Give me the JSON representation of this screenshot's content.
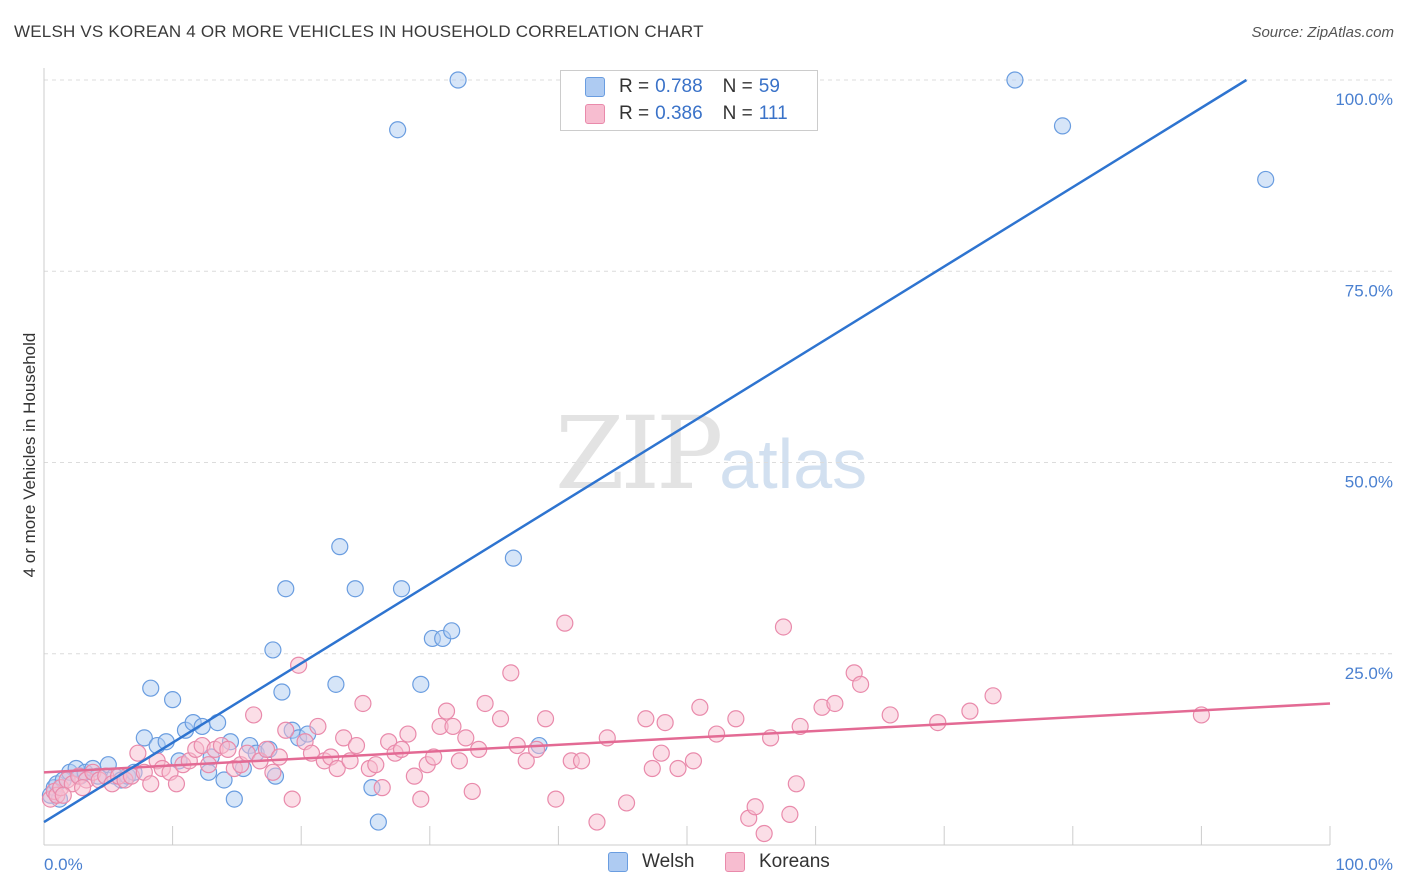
{
  "title": "WELSH VS KOREAN 4 OR MORE VEHICLES IN HOUSEHOLD CORRELATION CHART",
  "source": "Source: ZipAtlas.com",
  "watermark": {
    "zip": "ZIP",
    "atlas": "atlas"
  },
  "legend": {
    "welsh": {
      "r_label": "R =",
      "r_value": "0.788",
      "n_label": "N =",
      "n_value": "59"
    },
    "koreans": {
      "r_label": "R =",
      "r_value": "0.386",
      "n_label": "N =",
      "n_value": "111"
    }
  },
  "bottom_legend": {
    "welsh": "Welsh",
    "koreans": "Koreans"
  },
  "colors": {
    "welsh_fill": "#aecbf2",
    "welsh_stroke": "#6a9de0",
    "welsh_line": "#2e74d0",
    "koreans_fill": "#f7bdd0",
    "koreans_stroke": "#e98aab",
    "koreans_line": "#e36a94"
  },
  "chart_data": {
    "type": "scatter",
    "title": "WELSH VS KOREAN 4 OR MORE VEHICLES IN HOUSEHOLD CORRELATION CHART",
    "xlabel": "",
    "ylabel": "4 or more Vehicles in Household",
    "xlim": [
      0,
      100
    ],
    "ylim": [
      0,
      100
    ],
    "x_tick_labels": [
      "0.0%",
      "100.0%"
    ],
    "y_tick_labels": [
      "25.0%",
      "50.0%",
      "75.0%",
      "100.0%"
    ],
    "y_ticks": [
      25,
      50,
      75,
      100
    ],
    "series": [
      {
        "name": "Welsh",
        "r": 0.788,
        "n": 59,
        "trend": {
          "x": [
            0,
            93.5
          ],
          "y": [
            3.0,
            100.0
          ]
        },
        "points": [
          [
            0.5,
            6.5
          ],
          [
            0.8,
            7.5
          ],
          [
            1.0,
            8.0
          ],
          [
            1.2,
            6.0
          ],
          [
            1.5,
            8.5
          ],
          [
            2.0,
            9.5
          ],
          [
            2.5,
            10.0
          ],
          [
            2.8,
            9.0
          ],
          [
            3.2,
            9.5
          ],
          [
            3.8,
            10.0
          ],
          [
            4.2,
            9.0
          ],
          [
            5.0,
            10.5
          ],
          [
            5.5,
            9.0
          ],
          [
            6.0,
            8.5
          ],
          [
            6.5,
            9.0
          ],
          [
            7.0,
            9.5
          ],
          [
            7.8,
            14.0
          ],
          [
            8.3,
            20.5
          ],
          [
            8.8,
            13.0
          ],
          [
            9.5,
            13.5
          ],
          [
            10.0,
            19.0
          ],
          [
            10.5,
            11.0
          ],
          [
            11.0,
            15.0
          ],
          [
            11.6,
            16.0
          ],
          [
            12.3,
            15.5
          ],
          [
            12.8,
            9.5
          ],
          [
            13.0,
            11.5
          ],
          [
            13.5,
            16.0
          ],
          [
            14.0,
            8.5
          ],
          [
            14.5,
            13.5
          ],
          [
            14.8,
            6.0
          ],
          [
            15.5,
            10.0
          ],
          [
            16.0,
            13.0
          ],
          [
            16.5,
            12.0
          ],
          [
            17.5,
            12.5
          ],
          [
            17.8,
            25.5
          ],
          [
            18.0,
            9.0
          ],
          [
            18.5,
            20.0
          ],
          [
            18.8,
            33.5
          ],
          [
            19.3,
            15.0
          ],
          [
            19.8,
            14.0
          ],
          [
            20.5,
            14.5
          ],
          [
            22.7,
            21.0
          ],
          [
            23.0,
            39.0
          ],
          [
            24.2,
            33.5
          ],
          [
            25.5,
            7.5
          ],
          [
            26.0,
            3.0
          ],
          [
            27.5,
            93.5
          ],
          [
            27.8,
            33.5
          ],
          [
            29.3,
            21.0
          ],
          [
            30.2,
            27.0
          ],
          [
            31.0,
            27.0
          ],
          [
            31.7,
            28.0
          ],
          [
            32.2,
            100.0
          ],
          [
            36.5,
            37.5
          ],
          [
            38.5,
            13.0
          ],
          [
            75.5,
            100.0
          ],
          [
            79.2,
            94.0
          ],
          [
            95.0,
            87.0
          ]
        ]
      },
      {
        "name": "Koreans",
        "r": 0.386,
        "n": 111,
        "trend": {
          "x": [
            0,
            100
          ],
          "y": [
            9.5,
            18.5
          ]
        },
        "points": [
          [
            0.5,
            6.0
          ],
          [
            0.8,
            7.0
          ],
          [
            1.0,
            6.5
          ],
          [
            1.3,
            7.5
          ],
          [
            1.8,
            8.5
          ],
          [
            2.2,
            8.0
          ],
          [
            2.7,
            9.0
          ],
          [
            3.3,
            8.5
          ],
          [
            3.8,
            9.5
          ],
          [
            4.3,
            8.5
          ],
          [
            4.8,
            9.0
          ],
          [
            5.3,
            8.0
          ],
          [
            5.8,
            9.0
          ],
          [
            6.3,
            8.5
          ],
          [
            6.8,
            9.0
          ],
          [
            7.3,
            12.0
          ],
          [
            7.8,
            9.5
          ],
          [
            8.3,
            8.0
          ],
          [
            8.8,
            11.0
          ],
          [
            9.2,
            10.0
          ],
          [
            9.8,
            9.5
          ],
          [
            10.3,
            8.0
          ],
          [
            10.8,
            10.5
          ],
          [
            11.3,
            11.0
          ],
          [
            11.8,
            12.5
          ],
          [
            12.3,
            13.0
          ],
          [
            12.8,
            10.5
          ],
          [
            13.3,
            12.5
          ],
          [
            13.8,
            13.0
          ],
          [
            14.3,
            12.5
          ],
          [
            14.8,
            10.0
          ],
          [
            15.3,
            10.5
          ],
          [
            15.8,
            12.0
          ],
          [
            16.3,
            17.0
          ],
          [
            16.8,
            11.0
          ],
          [
            17.3,
            12.5
          ],
          [
            17.8,
            9.5
          ],
          [
            18.3,
            11.5
          ],
          [
            18.8,
            15.0
          ],
          [
            19.3,
            6.0
          ],
          [
            19.8,
            23.5
          ],
          [
            20.3,
            13.5
          ],
          [
            20.8,
            12.0
          ],
          [
            21.3,
            15.5
          ],
          [
            21.8,
            11.0
          ],
          [
            22.3,
            11.5
          ],
          [
            22.8,
            10.0
          ],
          [
            23.3,
            14.0
          ],
          [
            23.8,
            11.0
          ],
          [
            24.3,
            13.0
          ],
          [
            24.8,
            18.5
          ],
          [
            25.3,
            10.0
          ],
          [
            25.8,
            10.5
          ],
          [
            26.3,
            7.5
          ],
          [
            26.8,
            13.5
          ],
          [
            27.3,
            12.0
          ],
          [
            27.8,
            12.5
          ],
          [
            28.3,
            14.5
          ],
          [
            28.8,
            9.0
          ],
          [
            29.3,
            6.0
          ],
          [
            29.8,
            10.5
          ],
          [
            30.3,
            11.5
          ],
          [
            30.8,
            15.5
          ],
          [
            31.3,
            17.5
          ],
          [
            31.8,
            15.5
          ],
          [
            32.3,
            11.0
          ],
          [
            32.8,
            14.0
          ],
          [
            33.3,
            7.0
          ],
          [
            33.8,
            12.5
          ],
          [
            34.3,
            18.5
          ],
          [
            35.5,
            16.5
          ],
          [
            36.3,
            22.5
          ],
          [
            36.8,
            13.0
          ],
          [
            37.5,
            11.0
          ],
          [
            38.3,
            12.5
          ],
          [
            39.0,
            16.5
          ],
          [
            39.8,
            6.0
          ],
          [
            40.5,
            29.0
          ],
          [
            41.0,
            11.0
          ],
          [
            41.8,
            11.0
          ],
          [
            43.0,
            3.0
          ],
          [
            43.8,
            14.0
          ],
          [
            45.3,
            5.5
          ],
          [
            46.8,
            16.5
          ],
          [
            47.3,
            10.0
          ],
          [
            48.0,
            12.0
          ],
          [
            48.3,
            16.0
          ],
          [
            49.3,
            10.0
          ],
          [
            50.5,
            11.0
          ],
          [
            51.0,
            18.0
          ],
          [
            52.3,
            14.5
          ],
          [
            53.8,
            16.5
          ],
          [
            54.8,
            3.5
          ],
          [
            55.3,
            5.0
          ],
          [
            56.0,
            1.5
          ],
          [
            56.5,
            14.0
          ],
          [
            57.5,
            28.5
          ],
          [
            58.0,
            4.0
          ],
          [
            58.5,
            8.0
          ],
          [
            58.8,
            15.5
          ],
          [
            60.5,
            18.0
          ],
          [
            61.5,
            18.5
          ],
          [
            63.0,
            22.5
          ],
          [
            63.5,
            21.0
          ],
          [
            65.8,
            17.0
          ],
          [
            69.5,
            16.0
          ],
          [
            72.0,
            17.5
          ],
          [
            73.8,
            19.5
          ],
          [
            90.0,
            17.0
          ],
          [
            1.5,
            6.5
          ],
          [
            3.0,
            7.5
          ]
        ]
      }
    ]
  }
}
